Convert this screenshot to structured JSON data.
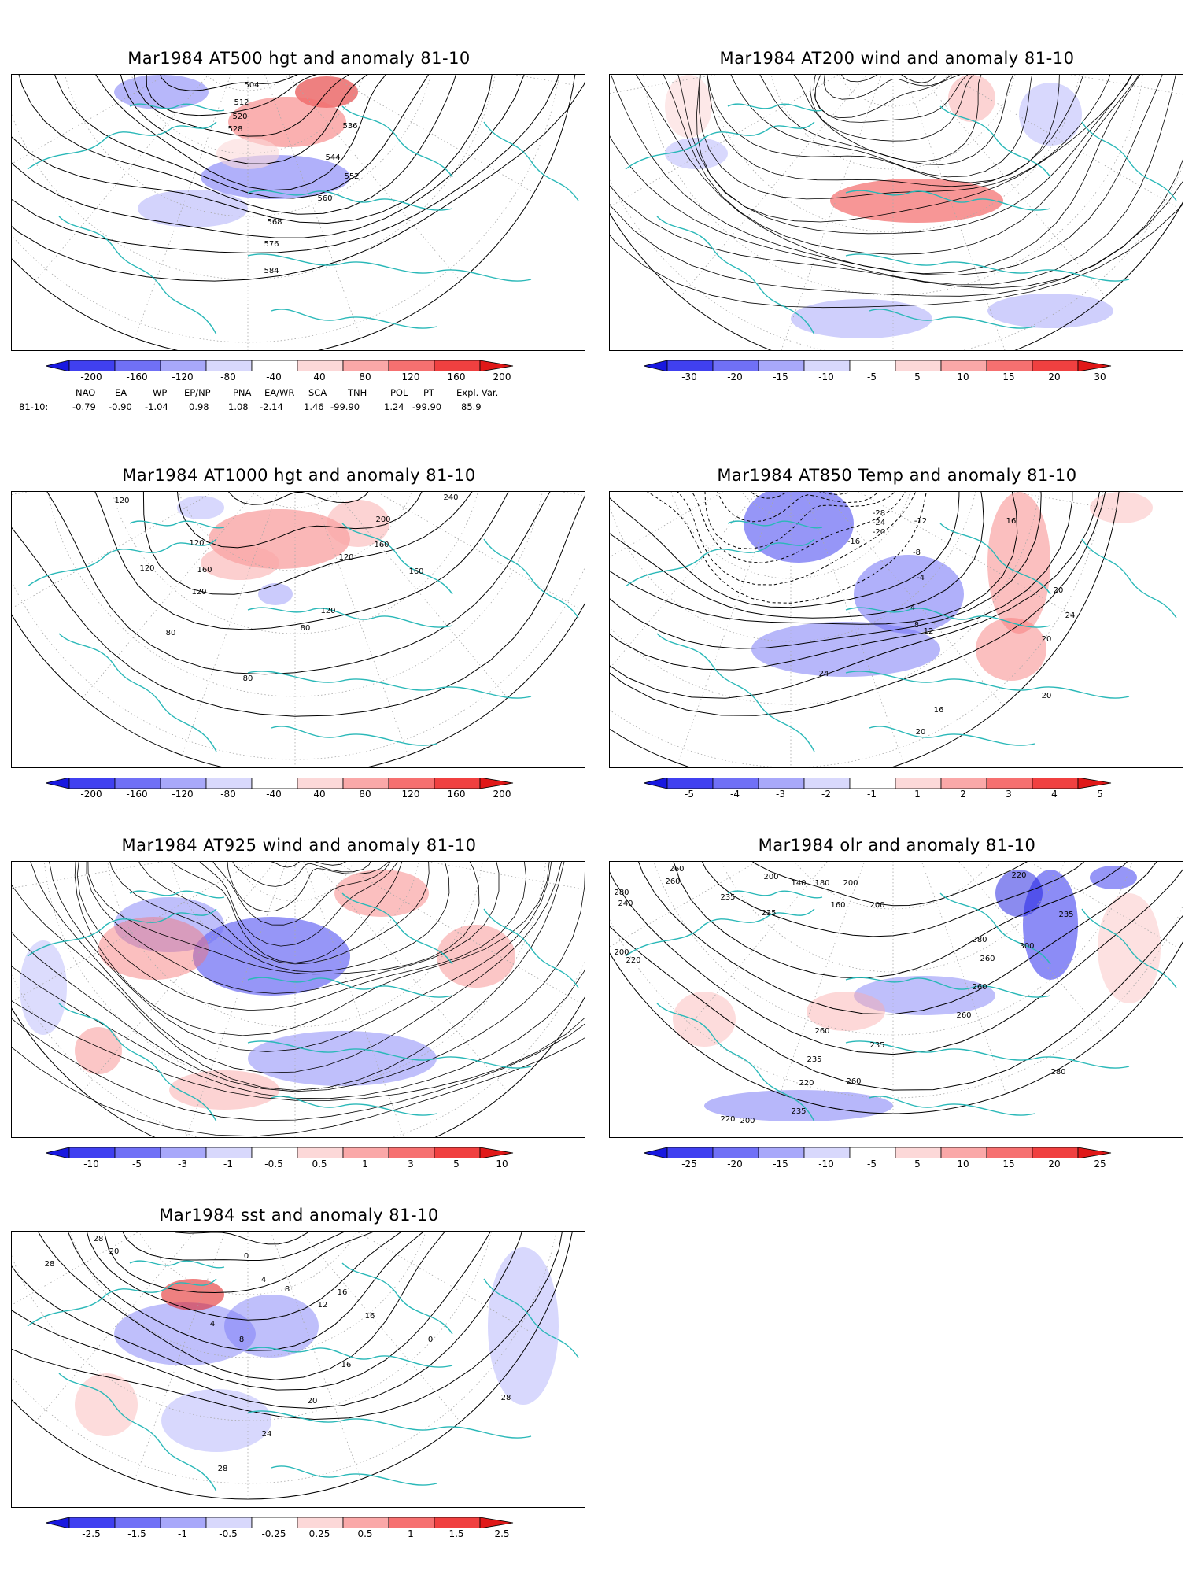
{
  "panels": [
    {
      "id": "at500",
      "title": "Mar1984 AT500 hgt and anomaly 81-10",
      "colorbar_labels": [
        "-200",
        "-160",
        "-120",
        "-80",
        "-40",
        "40",
        "80",
        "120",
        "160",
        "200"
      ],
      "contour_labels": [
        "504",
        "512",
        "520",
        "528",
        "536",
        "544",
        "552",
        "560",
        "568",
        "576",
        "584"
      ],
      "teleconnections": {
        "headers": [
          "NAO",
          "EA",
          "WP",
          "EP/NP",
          "PNA",
          "EA/WR",
          "SCA",
          "TNH",
          "POL",
          "PT",
          "Expl. Var."
        ],
        "row_label": "81-10:",
        "values": [
          "-0.79",
          "-0.90",
          "-1.04",
          "0.98",
          "1.08",
          "-2.14",
          "1.46",
          "-99.90",
          "1.24",
          "-99.90",
          "85.9"
        ]
      }
    },
    {
      "id": "at200",
      "title": "Mar1984 AT200 wind and anomaly 81-10",
      "colorbar_labels": [
        "-30",
        "-20",
        "-15",
        "-10",
        "-5",
        "5",
        "10",
        "15",
        "20",
        "30"
      ],
      "contour_labels": []
    },
    {
      "id": "at1000",
      "title": "Mar1984 AT1000 hgt and anomaly 81-10",
      "colorbar_labels": [
        "-200",
        "-160",
        "-120",
        "-80",
        "-40",
        "40",
        "80",
        "120",
        "160",
        "200"
      ],
      "contour_labels": [
        "120",
        "120",
        "160",
        "240",
        "200",
        "160",
        "120",
        "120",
        "160",
        "120",
        "120",
        "80",
        "80",
        "80"
      ]
    },
    {
      "id": "at850",
      "title": "Mar1984 AT850 Temp and anomaly 81-10",
      "colorbar_labels": [
        "-5",
        "-4",
        "-3",
        "-2",
        "-1",
        "1",
        "2",
        "3",
        "4",
        "5"
      ],
      "contour_labels": [
        "-28",
        "-24",
        "-20",
        "-16",
        "-12",
        "-8",
        "-4",
        "4",
        "8",
        "12",
        "16",
        "20",
        "20",
        "24",
        "24",
        "20",
        "16",
        "20"
      ]
    },
    {
      "id": "at925",
      "title": "Mar1984 AT925 wind and anomaly 81-10",
      "colorbar_labels": [
        "-10",
        "-5",
        "-3",
        "-1",
        "-0.5",
        "0.5",
        "1",
        "3",
        "5",
        "10"
      ],
      "contour_labels": []
    },
    {
      "id": "olr",
      "title": "Mar1984 olr and anomaly 81-10",
      "colorbar_labels": [
        "-25",
        "-20",
        "-15",
        "-10",
        "-5",
        "5",
        "10",
        "15",
        "20",
        "25"
      ],
      "contour_labels": [
        "260",
        "260",
        "200",
        "140",
        "180",
        "200",
        "160",
        "200",
        "235",
        "280",
        "240",
        "220",
        "235",
        "235",
        "200",
        "220",
        "260",
        "300",
        "280",
        "260",
        "260",
        "260",
        "280",
        "235",
        "235",
        "220",
        "260",
        "200",
        "220",
        "235"
      ]
    },
    {
      "id": "sst",
      "title": "Mar1984 sst and anomaly 81-10",
      "colorbar_labels": [
        "-2.5",
        "-1.5",
        "-1",
        "-0.5",
        "-0.25",
        "0.25",
        "0.5",
        "1",
        "1.5",
        "2.5"
      ],
      "contour_labels": [
        "28",
        "28",
        "20",
        "0",
        "4",
        "8",
        "12",
        "16",
        "16",
        "20",
        "24",
        "28",
        "0",
        "4",
        "8",
        "16",
        "28"
      ]
    }
  ],
  "colors": {
    "coast": "#2ab8b8",
    "contour": "#000000",
    "grid": "#a8a8a8",
    "bar_steps": [
      "#1818e0",
      "#4040f0",
      "#7070f6",
      "#a8a8fa",
      "#d8d8fc",
      "#ffffff",
      "#fcd8d8",
      "#faa8a8",
      "#f67070",
      "#f04040",
      "#e01818"
    ]
  }
}
